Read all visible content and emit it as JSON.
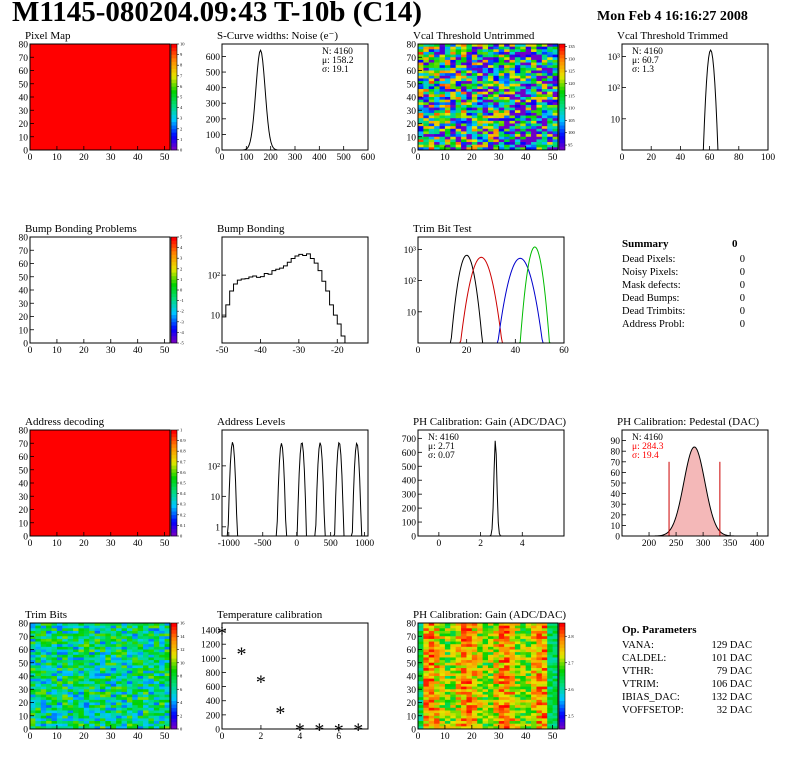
{
  "header": {
    "title": "M1145-080204.09:43 T-10b (C14)",
    "date": "Mon Feb  4 16:16:27 2008"
  },
  "chart_data": [
    {
      "id": "pixel-map",
      "type": "heatmap",
      "title": "Pixel Map",
      "xlim": [
        0,
        52
      ],
      "ylim": [
        0,
        80
      ],
      "xticks": [
        0,
        10,
        20,
        30,
        40,
        50
      ],
      "yticks": [
        0,
        10,
        20,
        30,
        40,
        50,
        60,
        70,
        80
      ],
      "fill": "uniform",
      "color": "#ff0000",
      "zticks": [
        {
          "v": 0,
          "t": "0"
        },
        {
          "v": 1,
          "t": "1"
        },
        {
          "v": 2,
          "t": "2"
        },
        {
          "v": 3,
          "t": "3"
        },
        {
          "v": 4,
          "t": "4"
        },
        {
          "v": 5,
          "t": "5"
        },
        {
          "v": 6,
          "t": "6"
        },
        {
          "v": 7,
          "t": "7"
        },
        {
          "v": 8,
          "t": "8"
        },
        {
          "v": 9,
          "t": "9"
        },
        {
          "v": 10,
          "t": "10"
        }
      ],
      "zlim": [
        0,
        10
      ]
    },
    {
      "id": "scurve-widths",
      "type": "histogram",
      "title": "S-Curve widths: Noise (e⁻)",
      "xlim": [
        0,
        600
      ],
      "ylim": [
        0,
        680
      ],
      "xticks": [
        0,
        100,
        200,
        300,
        400,
        500,
        600
      ],
      "yticks": [
        0,
        100,
        200,
        300,
        400,
        500,
        600
      ],
      "peaks": [
        {
          "mu": 158.2,
          "sigma": 19.1,
          "amp": 640,
          "color": "#000000"
        }
      ],
      "stats": [
        {
          "t": "N: 4160",
          "c": "#000"
        },
        {
          "t": "μ: 158.2",
          "c": "#000"
        },
        {
          "t": "σ: 19.1",
          "c": "#000"
        }
      ],
      "statpos": "top-right"
    },
    {
      "id": "vcal-untrimmed",
      "type": "heatmap",
      "title": "Vcal Threshold Untrimmed",
      "xlim": [
        0,
        52
      ],
      "ylim": [
        0,
        80
      ],
      "xticks": [
        0,
        10,
        20,
        30,
        40,
        50
      ],
      "yticks": [
        0,
        10,
        20,
        30,
        40,
        50,
        60,
        70,
        80
      ],
      "fill": "noise",
      "base": 0.45,
      "spread": 0.5,
      "colbias": "right-cool",
      "zticks": [
        {
          "v": 95,
          "t": "95"
        },
        {
          "v": 100,
          "t": "100"
        },
        {
          "v": 105,
          "t": "105"
        },
        {
          "v": 110,
          "t": "110"
        },
        {
          "v": 115,
          "t": "115"
        },
        {
          "v": 120,
          "t": "120"
        },
        {
          "v": 125,
          "t": "125"
        },
        {
          "v": 130,
          "t": "130"
        },
        {
          "v": 135,
          "t": "135"
        }
      ],
      "zlim": [
        93,
        136
      ]
    },
    {
      "id": "vcal-trimmed",
      "type": "histogram",
      "title": "Vcal Threshold Trimmed",
      "xlim": [
        0,
        100
      ],
      "log": true,
      "ylim": [
        1,
        2500
      ],
      "xticks": [
        0,
        20,
        40,
        60,
        80,
        100
      ],
      "yticks": [
        {
          "v": 10,
          "t": "10"
        },
        {
          "v": 100,
          "t": "10²"
        },
        {
          "v": 1000,
          "t": "10³"
        }
      ],
      "peaks": [
        {
          "mu": 60.7,
          "sigma": 1.3,
          "amp": 1600,
          "color": "#000000"
        }
      ],
      "stats": [
        {
          "t": "N: 4160",
          "c": "#000"
        },
        {
          "t": "μ: 60.7",
          "c": "#000"
        },
        {
          "t": "σ:  1.3",
          "c": "#000"
        }
      ],
      "statpos": "top-left"
    },
    {
      "id": "bump-problems",
      "type": "heatmap",
      "title": "Bump Bonding Problems",
      "xlim": [
        0,
        52
      ],
      "ylim": [
        0,
        80
      ],
      "xticks": [
        0,
        10,
        20,
        30,
        40,
        50
      ],
      "yticks": [
        0,
        10,
        20,
        30,
        40,
        50,
        60,
        70,
        80
      ],
      "fill": "none",
      "zticks": [
        {
          "v": -5,
          "t": "-5"
        },
        {
          "v": -4,
          "t": "-4"
        },
        {
          "v": -3,
          "t": "-3"
        },
        {
          "v": -2,
          "t": "-2"
        },
        {
          "v": -1,
          "t": "-1"
        },
        {
          "v": 0,
          "t": "0"
        },
        {
          "v": 1,
          "t": "1"
        },
        {
          "v": 2,
          "t": "2"
        },
        {
          "v": 3,
          "t": "3"
        },
        {
          "v": 4,
          "t": "4"
        },
        {
          "v": 5,
          "t": "5"
        }
      ],
      "zlim": [
        -5,
        5
      ]
    },
    {
      "id": "bump-bonding",
      "type": "histogram",
      "title": "Bump Bonding",
      "xlim": [
        -50,
        -12
      ],
      "log": true,
      "ylim": [
        2,
        900
      ],
      "xticks": [
        -50,
        -40,
        -30,
        -20
      ],
      "yticks": [
        {
          "v": 10,
          "t": "10"
        },
        {
          "v": 100,
          "t": "10²"
        }
      ],
      "curve": [
        [
          -50,
          9
        ],
        [
          -49,
          18
        ],
        [
          -48,
          40
        ],
        [
          -47,
          60
        ],
        [
          -46,
          75
        ],
        [
          -45,
          80
        ],
        [
          -44,
          82
        ],
        [
          -43,
          90
        ],
        [
          -42,
          95
        ],
        [
          -41,
          88
        ],
        [
          -40,
          92
        ],
        [
          -39,
          110
        ],
        [
          -38,
          105
        ],
        [
          -37,
          130
        ],
        [
          -36,
          140
        ],
        [
          -35,
          150
        ],
        [
          -34,
          170
        ],
        [
          -33,
          210
        ],
        [
          -32,
          260
        ],
        [
          -31,
          300
        ],
        [
          -30,
          330
        ],
        [
          -29,
          310
        ],
        [
          -28,
          340
        ],
        [
          -27,
          260
        ],
        [
          -26,
          200
        ],
        [
          -25,
          130
        ],
        [
          -24,
          70
        ],
        [
          -23,
          40
        ],
        [
          -22,
          18
        ],
        [
          -21,
          10
        ],
        [
          -20,
          6
        ],
        [
          -19,
          3
        ]
      ],
      "color": "#000000"
    },
    {
      "id": "trim-bit-test",
      "type": "histogram",
      "title": "Trim Bit Test",
      "xlim": [
        0,
        60
      ],
      "log": true,
      "ylim": [
        1,
        2500
      ],
      "xticks": [
        0,
        20,
        40,
        60
      ],
      "yticks": [
        {
          "v": 10,
          "t": "10"
        },
        {
          "v": 100,
          "t": "10²"
        },
        {
          "v": 1000,
          "t": "10³"
        }
      ],
      "peaks": [
        {
          "mu": 20,
          "sigma": 1.8,
          "amp": 650,
          "color": "#000000"
        },
        {
          "mu": 26,
          "sigma": 2.4,
          "amp": 560,
          "color": "#cc0000"
        },
        {
          "mu": 42,
          "sigma": 2.6,
          "amp": 520,
          "color": "#0000cc"
        },
        {
          "mu": 48,
          "sigma": 1.6,
          "amp": 1200,
          "color": "#00bb00"
        }
      ]
    },
    {
      "id": "address-decoding",
      "type": "heatmap",
      "title": "Address decoding",
      "xlim": [
        0,
        52
      ],
      "ylim": [
        0,
        80
      ],
      "xticks": [
        0,
        10,
        20,
        30,
        40,
        50
      ],
      "yticks": [
        0,
        10,
        20,
        30,
        40,
        50,
        60,
        70,
        80
      ],
      "fill": "uniform",
      "color": "#ff0000",
      "zticks": [
        {
          "v": 0,
          "t": "0"
        },
        {
          "v": 0.1,
          "t": "0.1"
        },
        {
          "v": 0.2,
          "t": "0.2"
        },
        {
          "v": 0.3,
          "t": "0.3"
        },
        {
          "v": 0.4,
          "t": "0.4"
        },
        {
          "v": 0.5,
          "t": "0.5"
        },
        {
          "v": 0.6,
          "t": "0.6"
        },
        {
          "v": 0.7,
          "t": "0.7"
        },
        {
          "v": 0.8,
          "t": "0.8"
        },
        {
          "v": 0.9,
          "t": "0.9"
        },
        {
          "v": 1,
          "t": "1"
        }
      ],
      "zlim": [
        0,
        1
      ]
    },
    {
      "id": "address-levels",
      "type": "histogram",
      "title": "Address Levels",
      "xlim": [
        -1100,
        1050
      ],
      "log": true,
      "ylim": [
        0.5,
        1500
      ],
      "xticks": [
        -1000,
        -500,
        0,
        500,
        1000
      ],
      "yticks": [
        {
          "v": 1,
          "t": "1"
        },
        {
          "v": 10,
          "t": "10"
        },
        {
          "v": 100,
          "t": "10²"
        }
      ],
      "peaks": [
        {
          "mu": -950,
          "sigma": 18,
          "amp": 600,
          "color": "#000000"
        },
        {
          "mu": -230,
          "sigma": 18,
          "amp": 550,
          "color": "#000000"
        },
        {
          "mu": 70,
          "sigma": 18,
          "amp": 600,
          "color": "#000000"
        },
        {
          "mu": 340,
          "sigma": 18,
          "amp": 580,
          "color": "#000000"
        },
        {
          "mu": 620,
          "sigma": 18,
          "amp": 600,
          "color": "#000000"
        },
        {
          "mu": 880,
          "sigma": 18,
          "amp": 560,
          "color": "#000000"
        }
      ]
    },
    {
      "id": "ph-gain",
      "type": "histogram",
      "title": "PH Calibration: Gain (ADC/DAC)",
      "xlim": [
        -1,
        6
      ],
      "ylim": [
        0,
        760
      ],
      "xticks": [
        0,
        2,
        4
      ],
      "yticks": [
        0,
        100,
        200,
        300,
        400,
        500,
        600,
        700
      ],
      "peaks": [
        {
          "mu": 2.71,
          "sigma": 0.07,
          "amp": 690,
          "color": "#000000"
        }
      ],
      "stats": [
        {
          "t": "N: 4160",
          "c": "#000"
        },
        {
          "t": "μ: 2.71",
          "c": "#000"
        },
        {
          "t": "σ: 0.07",
          "c": "#000"
        }
      ],
      "statpos": "top-left"
    },
    {
      "id": "ph-pedestal",
      "type": "histogram",
      "title": "PH Calibration: Pedestal (DAC)",
      "xlim": [
        150,
        420
      ],
      "ylim": [
        0,
        100
      ],
      "xticks": [
        200,
        250,
        300,
        350,
        400
      ],
      "yticks": [
        0,
        10,
        20,
        30,
        40,
        50,
        60,
        70,
        80,
        90
      ],
      "peaks": [
        {
          "mu": 284.3,
          "sigma": 19.4,
          "amp": 84,
          "color": "#000000"
        }
      ],
      "fitfill": true,
      "cutlines": [
        237,
        331
      ],
      "stats": [
        {
          "t": "N: 4160",
          "c": "#000"
        },
        {
          "t": "μ: 284.3",
          "c": "#ff0000"
        },
        {
          "t": "σ: 19.4",
          "c": "#ff0000"
        }
      ],
      "statpos": "top-left"
    },
    {
      "id": "trim-bits",
      "type": "heatmap",
      "title": "Trim Bits",
      "xlim": [
        0,
        52
      ],
      "ylim": [
        0,
        80
      ],
      "xticks": [
        0,
        10,
        20,
        30,
        40,
        50
      ],
      "yticks": [
        0,
        10,
        20,
        30,
        40,
        50,
        60,
        70,
        80
      ],
      "fill": "noise",
      "base": 0.42,
      "spread": 0.22,
      "zticks": [
        {
          "v": 0,
          "t": "0"
        },
        {
          "v": 2,
          "t": "2"
        },
        {
          "v": 4,
          "t": "4"
        },
        {
          "v": 6,
          "t": "6"
        },
        {
          "v": 8,
          "t": "8"
        },
        {
          "v": 10,
          "t": "10"
        },
        {
          "v": 12,
          "t": "12"
        },
        {
          "v": 14,
          "t": "14"
        },
        {
          "v": 16,
          "t": "16"
        }
      ],
      "zlim": [
        0,
        16
      ]
    },
    {
      "id": "temp-calibration",
      "type": "scatter",
      "title": "Temperature calibration",
      "xlim": [
        0,
        7.5
      ],
      "ylim": [
        0,
        1500
      ],
      "xticks": [
        0,
        2,
        4,
        6
      ],
      "yticks": [
        0,
        200,
        400,
        600,
        800,
        1000,
        1200,
        1400
      ],
      "x": [
        0,
        1,
        2,
        3,
        4,
        5,
        6,
        7
      ],
      "y": [
        1390,
        1100,
        700,
        260,
        20,
        20,
        15,
        20
      ]
    },
    {
      "id": "ph-gain-map",
      "type": "heatmap",
      "title": "PH Calibration: Gain (ADC/DAC)",
      "xlim": [
        0,
        52
      ],
      "ylim": [
        0,
        80
      ],
      "xticks": [
        0,
        10,
        20,
        30,
        40,
        50
      ],
      "yticks": [
        0,
        10,
        20,
        30,
        40,
        50,
        60,
        70,
        80
      ],
      "fill": "noise",
      "base": 0.72,
      "spread": 0.18,
      "bands": true,
      "zticks": [
        {
          "v": 2.5,
          "t": "2.5"
        },
        {
          "v": 2.6,
          "t": "2.6"
        },
        {
          "v": 2.7,
          "t": "2.7"
        },
        {
          "v": 2.8,
          "t": "2.8"
        }
      ],
      "zlim": [
        2.45,
        2.85
      ]
    }
  ],
  "summary": {
    "title": "Summary",
    "total": "0",
    "rows": [
      {
        "label": "Dead Pixels:",
        "value": "0"
      },
      {
        "label": "Noisy Pixels:",
        "value": "0"
      },
      {
        "label": "Mask defects:",
        "value": "0"
      },
      {
        "label": "Dead Bumps:",
        "value": "0"
      },
      {
        "label": "Dead Trimbits:",
        "value": "0"
      },
      {
        "label": "Address Probl:",
        "value": "0"
      }
    ]
  },
  "op_params": {
    "title": "Op. Parameters",
    "rows": [
      {
        "label": "VANA:",
        "value": "129 DAC"
      },
      {
        "label": "CALDEL:",
        "value": "101 DAC"
      },
      {
        "label": "VTHR:",
        "value": "79 DAC"
      },
      {
        "label": "VTRIM:",
        "value": "106 DAC"
      },
      {
        "label": "IBIAS_DAC:",
        "value": "132 DAC"
      },
      {
        "label": "VOFFSETOP:",
        "value": "32 DAC"
      }
    ]
  }
}
